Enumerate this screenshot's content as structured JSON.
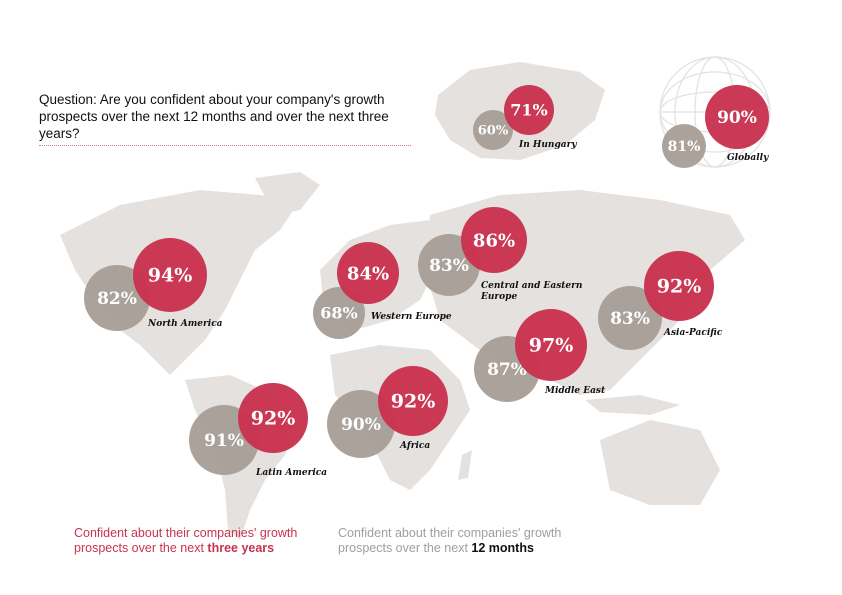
{
  "question": "Question: Are you confident about your company's growth prospects over the next 12 months and over the next three years?",
  "legend": {
    "three_years_prefix": "Confident about their companies' growth prospects over the next ",
    "three_years_bold": "three years",
    "twelve_months_prefix": "Confident about their companies' growth prospects over the next ",
    "twelve_months_bold": "12 months"
  },
  "colors": {
    "three_years": "#c8334f",
    "twelve_months": "#a89f99",
    "map": "#e4e1de"
  },
  "chart_data": {
    "type": "bubble-map",
    "title": "Question: Are you confident about your company's growth prospects over the next 12 months and over the next three years?",
    "series": [
      {
        "name": "Next 12 months",
        "color": "#a89f99"
      },
      {
        "name": "Next three years",
        "color": "#c8334f"
      }
    ],
    "regions": [
      {
        "name": "In Hungary",
        "twelve_months": 60,
        "three_years": 71
      },
      {
        "name": "Globally",
        "twelve_months": 81,
        "three_years": 90
      },
      {
        "name": "North America",
        "twelve_months": 82,
        "three_years": 94
      },
      {
        "name": "Western Europe",
        "twelve_months": 68,
        "three_years": 84
      },
      {
        "name": "Central and Eastern Europe",
        "twelve_months": 83,
        "three_years": 86
      },
      {
        "name": "Asia-Pacific",
        "twelve_months": 83,
        "three_years": 92
      },
      {
        "name": "Middle East",
        "twelve_months": 87,
        "three_years": 97
      },
      {
        "name": "Africa",
        "twelve_months": 90,
        "three_years": 92
      },
      {
        "name": "Latin America",
        "twelve_months": 91,
        "three_years": 92
      }
    ]
  }
}
